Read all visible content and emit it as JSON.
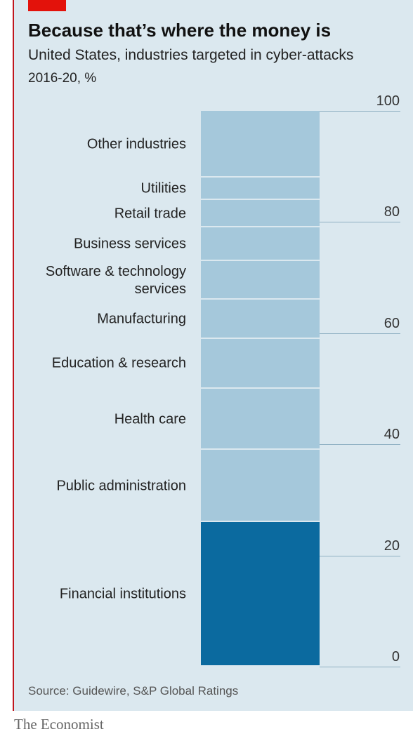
{
  "chart_data": {
    "type": "stacked_bar",
    "title": "Because that’s where the money is",
    "subtitle": "United States, industries targeted in cyber-attacks",
    "unit": "2016-20, %",
    "series": [
      {
        "name": "Financial institutions",
        "color": "#0b6a9f",
        "values": [
          26
        ]
      },
      {
        "name": "Public administration",
        "color": "#a5c8db",
        "values": [
          13
        ]
      },
      {
        "name": "Health care",
        "color": "#a5c8db",
        "values": [
          11
        ]
      },
      {
        "name": "Education & research",
        "color": "#a5c8db",
        "values": [
          9
        ]
      },
      {
        "name": "Manufacturing",
        "color": "#a5c8db",
        "values": [
          7
        ]
      },
      {
        "name": "Software & technology services",
        "color": "#a5c8db",
        "values": [
          7
        ]
      },
      {
        "name": "Business services",
        "color": "#a5c8db",
        "values": [
          6
        ]
      },
      {
        "name": "Retail trade",
        "color": "#a5c8db",
        "values": [
          5
        ]
      },
      {
        "name": "Utilities",
        "color": "#a5c8db",
        "values": [
          4
        ]
      },
      {
        "name": "Other industries",
        "color": "#a5c8db",
        "values": [
          12
        ]
      }
    ],
    "ylim": [
      0,
      100
    ],
    "yticks": [
      0,
      20,
      40,
      60,
      80,
      100
    ],
    "source": "Source: Guidewire, S&P Global Ratings",
    "footer": "The Economist"
  }
}
